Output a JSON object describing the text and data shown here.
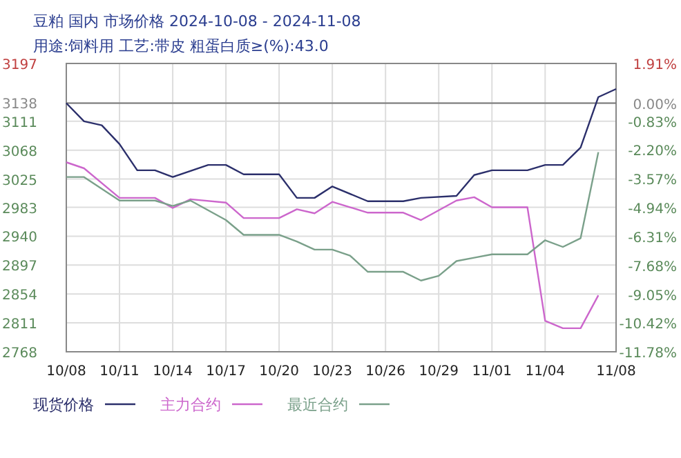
{
  "chart_data": {
    "type": "line",
    "title": "豆粕 国内 市场价格 2024-10-08 - 2024-11-08",
    "subtitle": "用途:饲料用 工艺:带皮 粗蛋白质≥(%):43.0",
    "series": [
      {
        "name": "现货价格",
        "color": "#2b2f6b",
        "x": [
          "2024-10-08",
          "2024-10-09",
          "2024-10-10",
          "2024-10-11",
          "2024-10-12",
          "2024-10-13",
          "2024-10-14",
          "2024-10-16",
          "2024-10-17",
          "2024-10-18",
          "2024-10-20",
          "2024-10-21",
          "2024-10-22",
          "2024-10-23",
          "2024-10-25",
          "2024-10-27",
          "2024-10-28",
          "2024-10-30",
          "2024-10-31",
          "2024-11-01",
          "2024-11-03",
          "2024-11-04",
          "2024-11-05",
          "2024-11-06",
          "2024-11-07",
          "2024-11-08"
        ],
        "values": [
          3138,
          3111,
          3105,
          3077,
          3038,
          3038,
          3028,
          3046,
          3046,
          3032,
          3032,
          2997,
          2997,
          3014,
          2992,
          2992,
          2997,
          3000,
          3031,
          3038,
          3038,
          3046,
          3046,
          3072,
          3147,
          3159
        ]
      },
      {
        "name": "主力合约",
        "color": "#cc66cc",
        "x": [
          "2024-10-08",
          "2024-10-09",
          "2024-10-11",
          "2024-10-13",
          "2024-10-14",
          "2024-10-15",
          "2024-10-17",
          "2024-10-18",
          "2024-10-20",
          "2024-10-21",
          "2024-10-22",
          "2024-10-23",
          "2024-10-25",
          "2024-10-27",
          "2024-10-28",
          "2024-10-30",
          "2024-10-31",
          "2024-11-01",
          "2024-11-03",
          "2024-11-04",
          "2024-11-05",
          "2024-11-06",
          "2024-11-07"
        ],
        "values": [
          3050,
          3041,
          2997,
          2997,
          2982,
          2995,
          2990,
          2967,
          2967,
          2980,
          2974,
          2991,
          2975,
          2975,
          2964,
          2993,
          2998,
          2983,
          2983,
          2814,
          2803,
          2803,
          2852
        ]
      },
      {
        "name": "最近合约",
        "color": "#7aa08a",
        "x": [
          "2024-10-08",
          "2024-10-09",
          "2024-10-11",
          "2024-10-13",
          "2024-10-14",
          "2024-10-15",
          "2024-10-17",
          "2024-10-18",
          "2024-10-20",
          "2024-10-21",
          "2024-10-22",
          "2024-10-23",
          "2024-10-24",
          "2024-10-25",
          "2024-10-27",
          "2024-10-28",
          "2024-10-29",
          "2024-10-30",
          "2024-10-31",
          "2024-11-01",
          "2024-11-03",
          "2024-11-04",
          "2024-11-05",
          "2024-11-06",
          "2024-11-07"
        ],
        "values": [
          3028,
          3028,
          2993,
          2993,
          2985,
          2993,
          2964,
          2942,
          2942,
          2932,
          2920,
          2920,
          2911,
          2887,
          2887,
          2874,
          2881,
          2903,
          2908,
          2913,
          2913,
          2934,
          2924,
          2937,
          3065
        ]
      }
    ],
    "xlim": [
      "2024-10-08",
      "2024-11-08"
    ],
    "xticks": [
      {
        "value": "2024-10-08",
        "label": "10/08"
      },
      {
        "value": "2024-10-11",
        "label": "10/11"
      },
      {
        "value": "2024-10-14",
        "label": "10/14"
      },
      {
        "value": "2024-10-17",
        "label": "10/17"
      },
      {
        "value": "2024-10-20",
        "label": "10/20"
      },
      {
        "value": "2024-10-23",
        "label": "10/23"
      },
      {
        "value": "2024-10-26",
        "label": "10/26"
      },
      {
        "value": "2024-10-29",
        "label": "10/29"
      },
      {
        "value": "2024-11-01",
        "label": "11/01"
      },
      {
        "value": "2024-11-04",
        "label": "11/04"
      },
      {
        "value": "2024-11-08",
        "label": "11/08"
      }
    ],
    "ylim": [
      2768,
      3197
    ],
    "yticks": [
      2768,
      2811,
      2854,
      2897,
      2940,
      2983,
      3025,
      3068,
      3111,
      3138,
      3197
    ],
    "y2lim": [
      -11.78,
      1.91
    ],
    "y2ticks": [
      {
        "value": -11.78,
        "label": "-11.78%"
      },
      {
        "value": -10.42,
        "label": "-10.42%"
      },
      {
        "value": -9.05,
        "label": "-9.05%"
      },
      {
        "value": -7.68,
        "label": "-7.68%"
      },
      {
        "value": -6.31,
        "label": "-6.31%"
      },
      {
        "value": -4.94,
        "label": "-4.94%"
      },
      {
        "value": -3.57,
        "label": "-3.57%"
      },
      {
        "value": -2.2,
        "label": "-2.20%"
      },
      {
        "value": -0.83,
        "label": "-0.83%"
      },
      {
        "value": 0,
        "label": "0.00%"
      },
      {
        "value": 1.91,
        "label": "1.91%"
      }
    ],
    "ref_lines": [
      {
        "axis": "y",
        "value": 3138,
        "color": "#777777"
      }
    ],
    "grid": true,
    "legend": "bottom",
    "marker": "none",
    "line_style": "solid"
  }
}
